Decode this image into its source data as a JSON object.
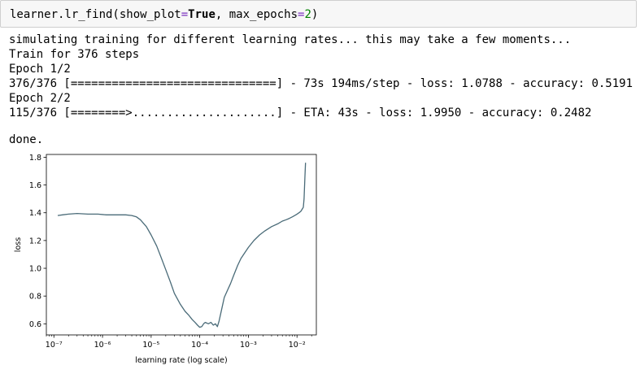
{
  "cell": {
    "code_parts": {
      "prefix": "learner.lr_find(show_plot",
      "eq1": "=",
      "kw_true": "True",
      "mid": ", max_epochs",
      "eq2": "=",
      "num": "2",
      "suffix": ")"
    }
  },
  "output": {
    "lines": [
      "simulating training for different learning rates... this may take a few moments...",
      "Train for 376 steps",
      "Epoch 1/2",
      "376/376 [==============================] - 73s 194ms/step - loss: 1.0788 - accuracy: 0.5191",
      "Epoch 2/2",
      "115/376 [========>.....................] - ETA: 43s - loss: 1.9950 - accuracy: 0.2482",
      "",
      "done."
    ]
  },
  "chart_data": {
    "type": "line",
    "title": "",
    "xlabel": "learning rate (log scale)",
    "ylabel": "loss",
    "xscale": "log",
    "xlim": [
      7e-08,
      0.025
    ],
    "ylim": [
      0.52,
      1.82
    ],
    "xticks": [
      1e-07,
      1e-06,
      1e-05,
      0.0001,
      0.001,
      0.01
    ],
    "xtick_labels": [
      "10⁻⁷",
      "10⁻⁶",
      "10⁻⁵",
      "10⁻⁴",
      "10⁻³",
      "10⁻²"
    ],
    "yticks": [
      0.6,
      0.8,
      1.0,
      1.2,
      1.4,
      1.6,
      1.8
    ],
    "ytick_labels": [
      "0.6",
      "0.8",
      "1.0",
      "1.2",
      "1.4",
      "1.6",
      "1.8"
    ],
    "grid": false,
    "line_color": "#4a6b78",
    "series": [
      {
        "x": [
          1.2e-07,
          1.5e-07,
          2e-07,
          3e-07,
          5e-07,
          8e-07,
          1.2e-06,
          2e-06,
          3e-06,
          4e-06,
          5e-06,
          6e-06,
          8e-06,
          1e-05,
          1.3e-05,
          1.6e-05,
          2e-05,
          2.5e-05,
          3e-05,
          4e-05,
          5e-05,
          6e-05,
          7e-05,
          8e-05,
          9e-05,
          0.0001,
          0.00011,
          0.00012,
          0.00013,
          0.00015,
          0.00017,
          0.00019,
          0.00021,
          0.00023,
          0.00025,
          0.00028,
          0.00032,
          0.00037,
          0.00043,
          0.0005,
          0.0006,
          0.0007,
          0.0008,
          0.001,
          0.0013,
          0.0017,
          0.0022,
          0.003,
          0.004,
          0.005,
          0.006,
          0.007,
          0.008,
          0.009,
          0.01,
          0.011,
          0.012,
          0.013,
          0.0135,
          0.014,
          0.0145,
          0.015
        ],
        "y": [
          1.38,
          1.385,
          1.39,
          1.395,
          1.39,
          1.39,
          1.385,
          1.385,
          1.385,
          1.38,
          1.37,
          1.35,
          1.3,
          1.24,
          1.16,
          1.08,
          0.99,
          0.9,
          0.82,
          0.74,
          0.69,
          0.66,
          0.63,
          0.61,
          0.59,
          0.575,
          0.58,
          0.6,
          0.61,
          0.6,
          0.61,
          0.59,
          0.6,
          0.58,
          0.62,
          0.7,
          0.79,
          0.84,
          0.89,
          0.95,
          1.02,
          1.07,
          1.1,
          1.15,
          1.2,
          1.24,
          1.27,
          1.3,
          1.32,
          1.34,
          1.35,
          1.36,
          1.37,
          1.38,
          1.39,
          1.4,
          1.41,
          1.43,
          1.44,
          1.5,
          1.65,
          1.76
        ]
      }
    ]
  }
}
